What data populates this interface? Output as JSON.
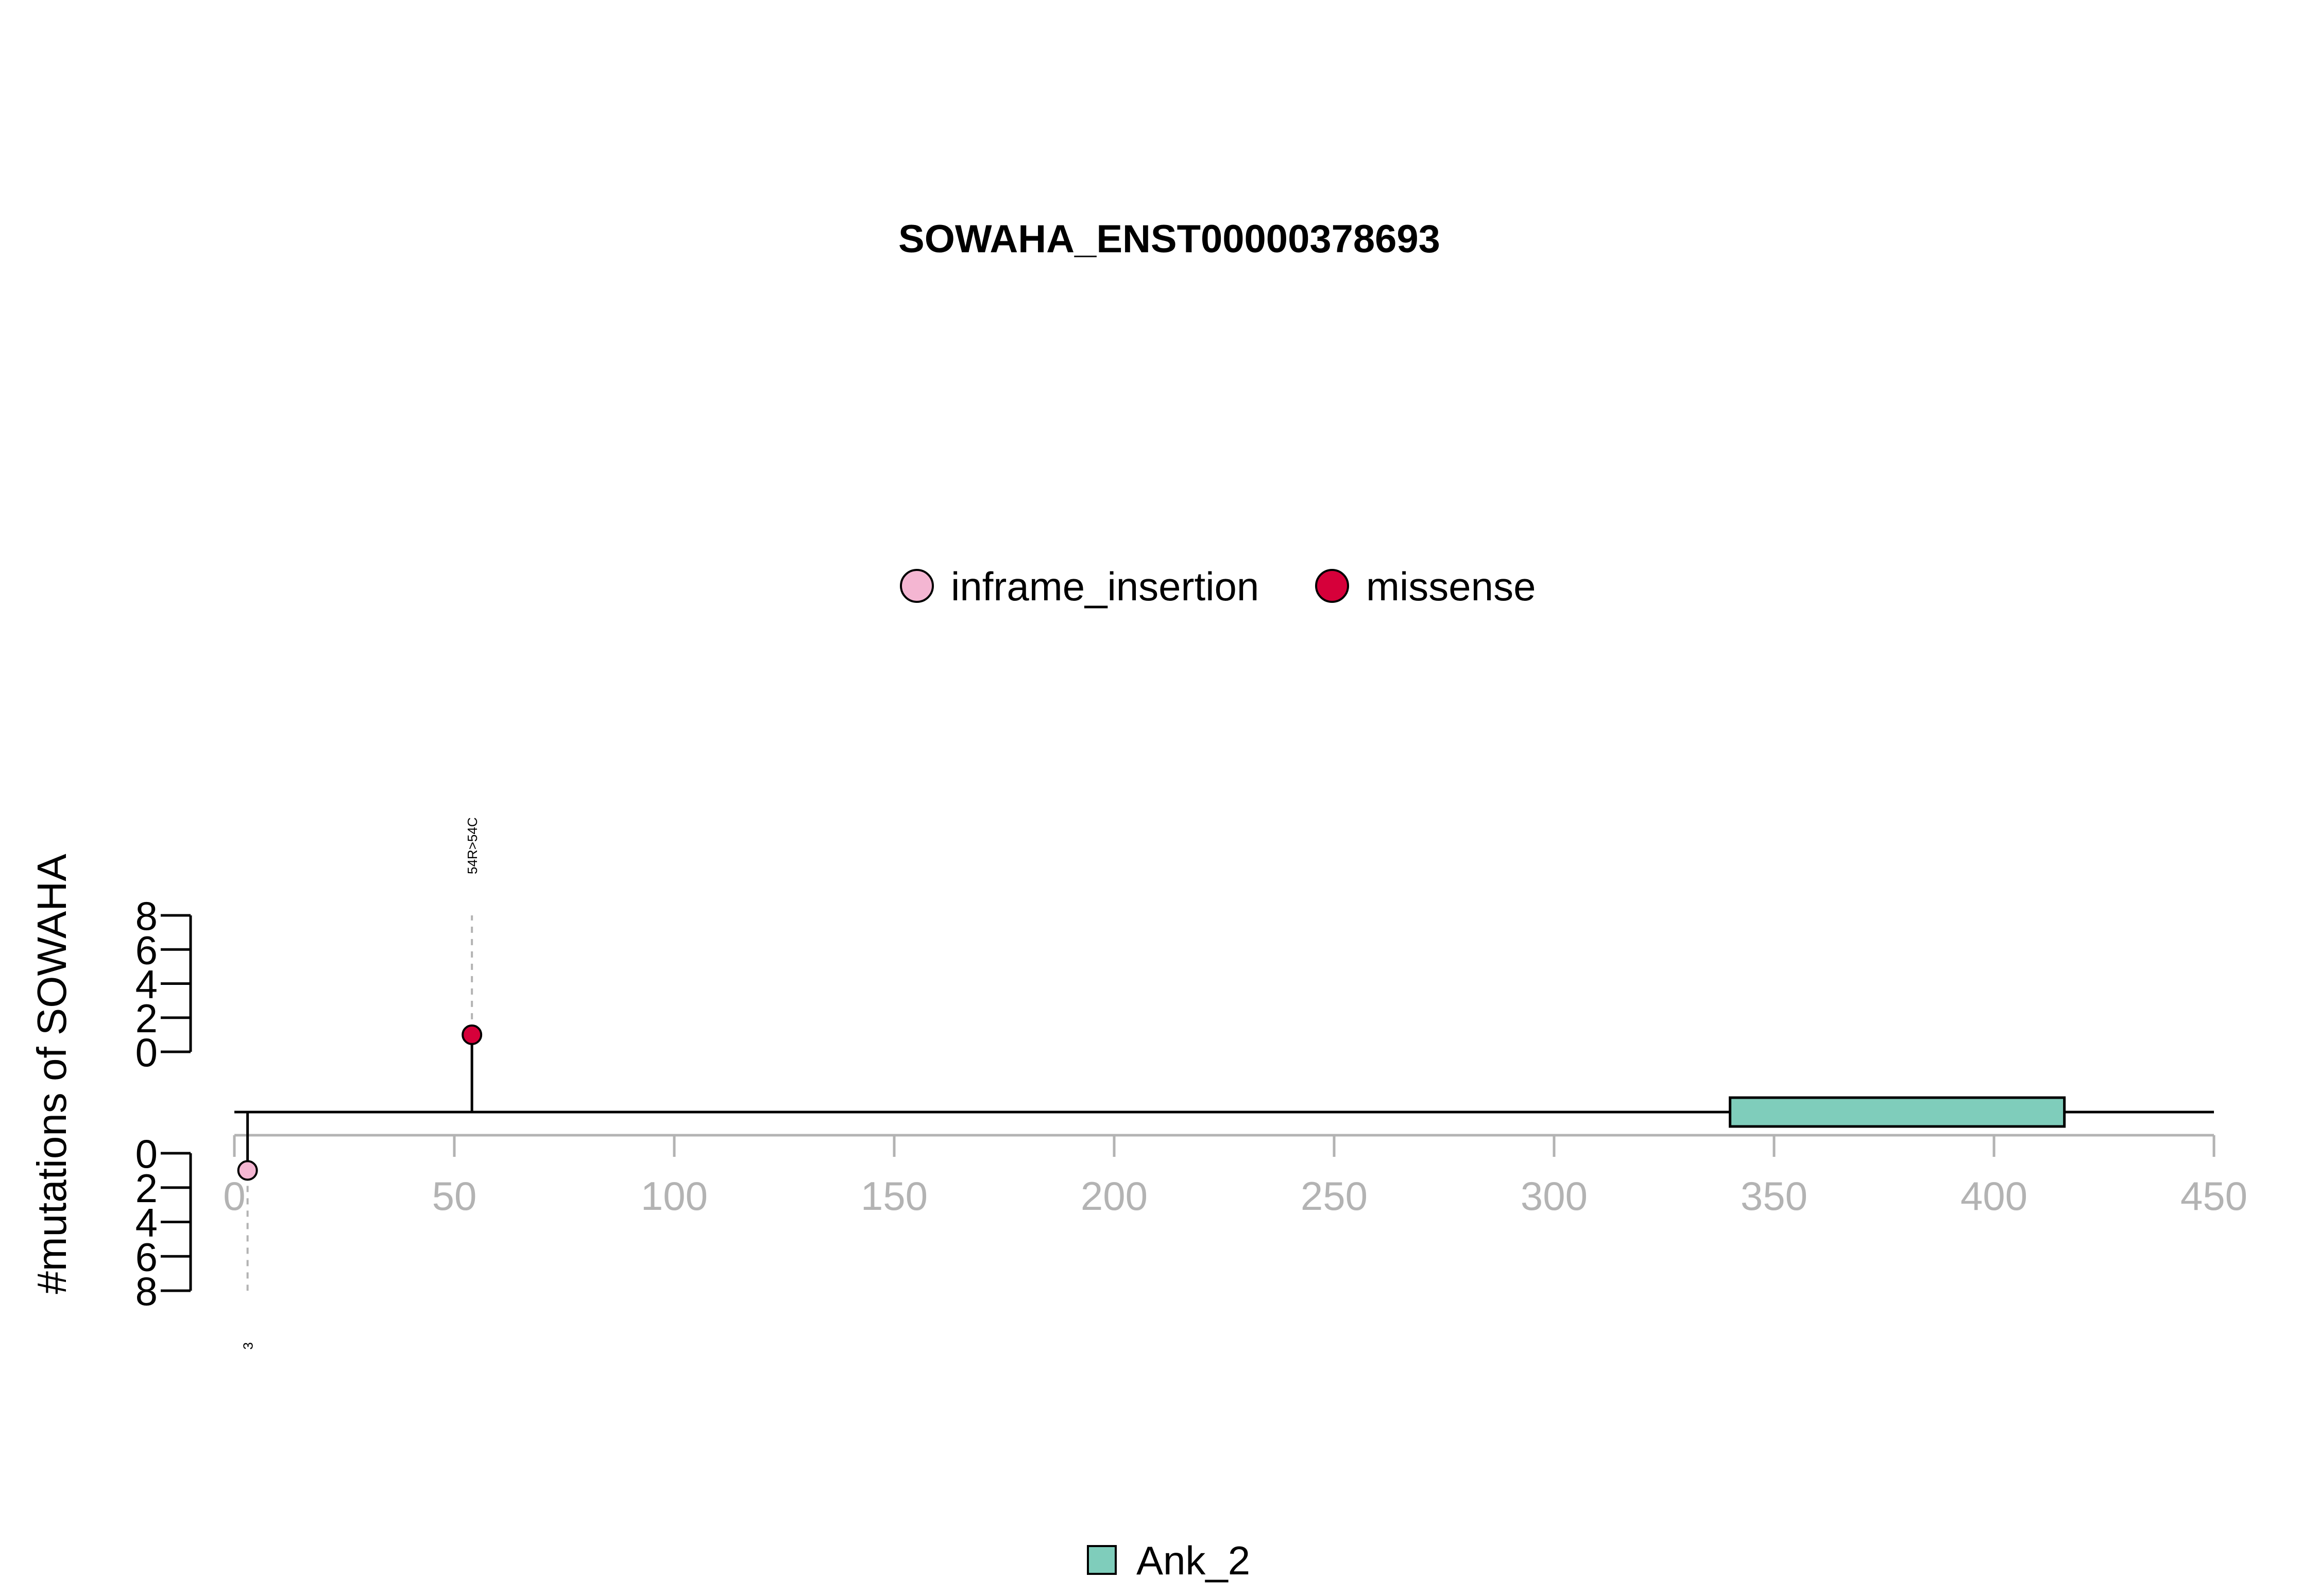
{
  "chart_data": {
    "type": "lollipop",
    "title": "SOWAHA_ENST00000378693",
    "ylabel": "#mutations of SOWAHA",
    "xlim": [
      0,
      450
    ],
    "x_ticks": [
      0,
      50,
      100,
      150,
      200,
      250,
      300,
      350,
      400,
      450
    ],
    "y_ticks_top": [
      0,
      2,
      4,
      6,
      8
    ],
    "y_ticks_bottom": [
      0,
      2,
      4,
      6,
      8
    ],
    "ylim": [
      0,
      8
    ],
    "legend_mutations": [
      {
        "name": "inframe_insertion",
        "color": "#F4B6D2"
      },
      {
        "name": "missense",
        "color": "#D6003A"
      }
    ],
    "legend_domains": [
      {
        "name": "Ank_2",
        "color": "#7FCDBB"
      }
    ],
    "domains": [
      {
        "name": "Ank_2",
        "start": 340,
        "end": 416,
        "color": "#7FCDBB"
      }
    ],
    "mutations": [
      {
        "position": 54,
        "count": 1,
        "side": "top",
        "type": "missense",
        "label": "54R>54C"
      },
      {
        "position": 3,
        "count": 1,
        "side": "bottom",
        "type": "inframe_insertion",
        "label": "3"
      }
    ]
  }
}
